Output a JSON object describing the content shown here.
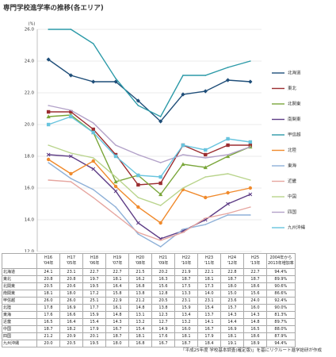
{
  "chart_data": {
    "type": "line",
    "title": "専門学校進学率の推移(各エリア)",
    "y_label": "(%)",
    "categories": [
      "H16\n'04年",
      "H17\n'05年",
      "H18\n'06年",
      "H19\n'07年",
      "H20\n'08年",
      "H21\n'09年",
      "H22\n'10年",
      "H23\n'11年",
      "H24\n'12年",
      "H25\n'13年"
    ],
    "growth_header": "2004年から\n2013年増加率",
    "ylim": [
      12,
      26
    ],
    "yticks": [
      {
        "value": 12,
        "label": "12.0"
      },
      {
        "value": 14,
        "label": "14.0"
      },
      {
        "value": 16,
        "label": "16.0"
      },
      {
        "value": 18,
        "label": "18.0"
      },
      {
        "value": 20,
        "label": "20.0"
      },
      {
        "value": 22,
        "label": "22.0"
      },
      {
        "value": 24,
        "label": "24.0"
      },
      {
        "value": 26,
        "label": "26.0"
      }
    ],
    "grid": true,
    "legend": "right",
    "series": [
      {
        "name": "北海道",
        "color": "#1f4e79",
        "marker": "diamond",
        "values": [
          24.1,
          23.1,
          22.7,
          22.7,
          21.5,
          20.2,
          21.9,
          22.1,
          22.8,
          22.7
        ],
        "value_labels": [
          "24.1",
          "23.1",
          "22.7",
          "22.7",
          "21.5",
          "20.2",
          "21.9",
          "22.1",
          "22.8",
          "22.7"
        ],
        "growth": {
          "value": 94.4,
          "label": "94.4%"
        }
      },
      {
        "name": "東北",
        "color": "#9b2d30",
        "marker": "square",
        "values": [
          20.8,
          20.8,
          19.7,
          18.1,
          16.2,
          16.3,
          18.7,
          18.1,
          18.7,
          18.7
        ],
        "value_labels": [
          "20.8",
          "20.8",
          "19.7",
          "18.1",
          "16.2",
          "16.3",
          "18.7",
          "18.1",
          "18.7",
          "18.7"
        ],
        "growth": {
          "value": 89.9,
          "label": "89.9%"
        }
      },
      {
        "name": "北関東",
        "color": "#7aa63a",
        "marker": "triangle",
        "values": [
          20.5,
          20.6,
          19.5,
          16.4,
          16.8,
          15.6,
          17.5,
          17.3,
          18.0,
          18.6
        ],
        "value_labels": [
          "20.5",
          "20.6",
          "19.5",
          "16.4",
          "16.8",
          "15.6",
          "17.5",
          "17.3",
          "18.0",
          "18.6"
        ],
        "growth": {
          "value": 90.6,
          "label": "90.6%"
        }
      },
      {
        "name": "南関東",
        "color": "#5e3d86",
        "marker": "x",
        "values": [
          18.1,
          18.0,
          17.2,
          15.8,
          13.8,
          12.8,
          13.3,
          14.0,
          15.0,
          15.6
        ],
        "value_labels": [
          "18.1",
          "18.0",
          "17.2",
          "15.8",
          "13.8",
          "12.8",
          "13.3",
          "14.0",
          "15.0",
          "15.6"
        ],
        "growth": {
          "value": 86.6,
          "label": "86.6%"
        }
      },
      {
        "name": "甲信越",
        "color": "#2c9aa8",
        "marker": "none",
        "values": [
          26.0,
          26.0,
          25.1,
          22.9,
          21.2,
          20.5,
          23.1,
          23.1,
          23.6,
          24.0
        ],
        "value_labels": [
          "26.0",
          "26.0",
          "25.1",
          "22.9",
          "21.2",
          "20.5",
          "23.1",
          "23.1",
          "23.6",
          "24.0"
        ],
        "growth": {
          "value": 92.4,
          "label": "92.4%"
        }
      },
      {
        "name": "北陸",
        "color": "#f08a2c",
        "marker": "circle",
        "values": [
          17.8,
          16.9,
          17.7,
          16.1,
          14.8,
          13.8,
          15.9,
          15.4,
          15.7,
          16.0
        ],
        "value_labels": [
          "17.8",
          "16.9",
          "17.7",
          "16.1",
          "14.8",
          "13.8",
          "15.9",
          "15.4",
          "15.7",
          "16.0"
        ],
        "growth": {
          "value": 90.0,
          "label": "90.0%"
        }
      },
      {
        "name": "東海",
        "color": "#8fb1d8",
        "marker": "none",
        "values": [
          17.6,
          16.6,
          15.9,
          14.8,
          13.1,
          12.3,
          13.4,
          13.7,
          14.3,
          14.3
        ],
        "value_labels": [
          "17.6",
          "16.6",
          "15.9",
          "14.8",
          "13.1",
          "12.3",
          "13.4",
          "13.7",
          "14.3",
          "14.3"
        ],
        "growth": {
          "value": 81.3,
          "label": "81.3%"
        }
      },
      {
        "name": "近畿",
        "color": "#e6a6a0",
        "marker": "none",
        "values": [
          16.5,
          16.4,
          15.4,
          14.3,
          13.2,
          12.7,
          13.2,
          14.1,
          14.4,
          14.8
        ],
        "value_labels": [
          "16.5",
          "16.4",
          "15.4",
          "14.3",
          "13.2",
          "12.7",
          "13.2",
          "14.1",
          "14.4",
          "14.8"
        ],
        "growth": {
          "value": 89.7,
          "label": "89.7%"
        }
      },
      {
        "name": "中国",
        "color": "#b9d48c",
        "marker": "none",
        "values": [
          18.7,
          18.2,
          17.9,
          16.7,
          15.4,
          14.9,
          16.0,
          16.7,
          16.9,
          16.5
        ],
        "value_labels": [
          "18.7",
          "18.2",
          "17.9",
          "16.7",
          "15.4",
          "14.9",
          "16.0",
          "16.7",
          "16.9",
          "16.5"
        ],
        "growth": {
          "value": 88.0,
          "label": "88.0%"
        }
      },
      {
        "name": "四国",
        "color": "#b3a2c9",
        "marker": "none",
        "values": [
          21.2,
          20.9,
          20.1,
          18.7,
          18.1,
          17.6,
          18.1,
          17.9,
          18.1,
          18.6
        ],
        "value_labels": [
          "21.2",
          "20.9",
          "20.1",
          "18.7",
          "18.1",
          "17.6",
          "18.1",
          "17.9",
          "18.1",
          "18.6"
        ],
        "growth": {
          "value": 87.9,
          "label": "87.9%"
        }
      },
      {
        "name": "九州沖縄",
        "color": "#68c4de",
        "marker": "square",
        "values": [
          20.0,
          20.5,
          19.5,
          18.0,
          16.8,
          16.7,
          18.7,
          18.4,
          19.1,
          18.9
        ],
        "value_labels": [
          "20.0",
          "20.5",
          "19.5",
          "18.0",
          "16.8",
          "16.7",
          "18.7",
          "18.4",
          "19.1",
          "18.9"
        ],
        "growth": {
          "value": 94.4,
          "label": "94.4%"
        }
      }
    ],
    "source": "「平成25年度 学校基本調査(確定版)」を基にリクルート進学総研が作成"
  }
}
